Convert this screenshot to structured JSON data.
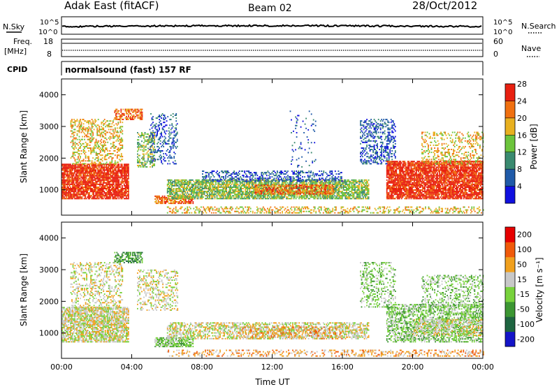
{
  "header": {
    "station": "Adak East (fitACF)",
    "beam": "Beam 02",
    "date": "28/Oct/2012"
  },
  "noise_panel": {
    "left_label": "N.Sky",
    "left_ticks": [
      "10^5",
      "10^0"
    ],
    "right_label": "N.Search",
    "right_ticks": [
      "10^5",
      "10^0"
    ],
    "line_color": "#000000"
  },
  "freq_panel": {
    "left_label_1": "Freq.",
    "left_label_2": "[MHz]",
    "left_ticks": [
      "18",
      "8"
    ],
    "right_label": "Nave",
    "right_ticks": [
      "60",
      "0"
    ]
  },
  "cpid_panel": {
    "label": "CPID",
    "text": "normalsound (fast) 157 RF"
  },
  "chart_data": [
    {
      "type": "heatmap",
      "name": "power",
      "ylabel": "Slant Range [km]",
      "ylim": [
        200,
        4500
      ],
      "yticks": [
        "1000",
        "2000",
        "3000",
        "4000"
      ],
      "xlim": [
        0,
        24
      ],
      "xticks": [
        "00:00",
        "04:00",
        "08:00",
        "12:00",
        "16:00",
        "20:00",
        "00:00"
      ],
      "colorbar": {
        "label": "Power [dB]",
        "ticks": [
          "4",
          "8",
          "12",
          "16",
          "20",
          "24",
          "28"
        ],
        "colors": [
          "#1010e0",
          "#205aa8",
          "#3a8a70",
          "#6cc43c",
          "#e8b020",
          "#f07010",
          "#e82010"
        ]
      },
      "regions": [
        {
          "x": [
            0.0,
            3.8
          ],
          "y": [
            700,
            1800
          ],
          "level": 6,
          "density": 0.85
        },
        {
          "x": [
            0.5,
            3.5
          ],
          "y": [
            1800,
            3200
          ],
          "level": 4,
          "density": 0.35
        },
        {
          "x": [
            3.0,
            4.6
          ],
          "y": [
            3200,
            3550
          ],
          "level": 5,
          "density": 0.6
        },
        {
          "x": [
            4.3,
            5.3
          ],
          "y": [
            1700,
            2800
          ],
          "level": 3,
          "density": 0.45
        },
        {
          "x": [
            5.0,
            6.6
          ],
          "y": [
            1800,
            3400
          ],
          "level": 1,
          "density": 0.25
        },
        {
          "x": [
            5.3,
            7.5
          ],
          "y": [
            550,
            800
          ],
          "level": 5,
          "density": 0.7
        },
        {
          "x": [
            6.0,
            17.5
          ],
          "y": [
            700,
            1300
          ],
          "level": 3,
          "density": 0.75
        },
        {
          "x": [
            11.0,
            15.5
          ],
          "y": [
            850,
            1150
          ],
          "level": 5,
          "density": 0.6
        },
        {
          "x": [
            8.0,
            16.0
          ],
          "y": [
            1250,
            1600
          ],
          "level": 1,
          "density": 0.4
        },
        {
          "x": [
            13.0,
            14.5
          ],
          "y": [
            1700,
            3500
          ],
          "level": 1,
          "density": 0.08
        },
        {
          "x": [
            17.0,
            19.0
          ],
          "y": [
            1800,
            3200
          ],
          "level": 1,
          "density": 0.35
        },
        {
          "x": [
            18.5,
            24.0
          ],
          "y": [
            700,
            1900
          ],
          "level": 6,
          "density": 0.85
        },
        {
          "x": [
            20.5,
            24.0
          ],
          "y": [
            1800,
            2800
          ],
          "level": 4,
          "density": 0.3
        },
        {
          "x": [
            6.0,
            24.0
          ],
          "y": [
            250,
            450
          ],
          "level": 4,
          "density": 0.35
        }
      ]
    },
    {
      "type": "heatmap",
      "name": "velocity",
      "ylabel": "Slant Range [km]",
      "ylim": [
        200,
        4500
      ],
      "yticks": [
        "1000",
        "2000",
        "3000",
        "4000"
      ],
      "xlim": [
        0,
        24
      ],
      "xlabel": "Time UT",
      "xticks": [
        "00:00",
        "04:00",
        "08:00",
        "12:00",
        "16:00",
        "20:00",
        "00:00"
      ],
      "colorbar": {
        "label": "Velocity [m s⁻¹]",
        "ticks": [
          "200",
          "100",
          "50",
          "15",
          "-15",
          "-50",
          "-100",
          "-200"
        ],
        "colors": [
          "#1414c8",
          "#1e6440",
          "#3c9632",
          "#78d23c",
          "#c8c8c8",
          "#f0a01e",
          "#f05a0a",
          "#e60000"
        ]
      },
      "regions": [
        {
          "x": [
            0.0,
            3.8
          ],
          "y": [
            700,
            1800
          ],
          "level": 4,
          "density": 0.75
        },
        {
          "x": [
            0.5,
            3.5
          ],
          "y": [
            1800,
            3200
          ],
          "level": 4,
          "density": 0.3
        },
        {
          "x": [
            3.0,
            4.6
          ],
          "y": [
            3200,
            3550
          ],
          "level": 2,
          "density": 0.5
        },
        {
          "x": [
            4.3,
            6.6
          ],
          "y": [
            1700,
            3000
          ],
          "level": 4,
          "density": 0.3
        },
        {
          "x": [
            5.3,
            7.5
          ],
          "y": [
            550,
            850
          ],
          "level": 3,
          "density": 0.75
        },
        {
          "x": [
            6.0,
            17.5
          ],
          "y": [
            800,
            1300
          ],
          "level": 4,
          "density": 0.55
        },
        {
          "x": [
            10.0,
            16.0
          ],
          "y": [
            800,
            1200
          ],
          "level": 5,
          "density": 0.25
        },
        {
          "x": [
            17.0,
            19.0
          ],
          "y": [
            1800,
            3200
          ],
          "level": 3,
          "density": 0.3
        },
        {
          "x": [
            18.5,
            24.0
          ],
          "y": [
            700,
            1900
          ],
          "level": 3,
          "density": 0.55
        },
        {
          "x": [
            20.0,
            24.0
          ],
          "y": [
            900,
            1400
          ],
          "level": 4,
          "density": 0.5
        },
        {
          "x": [
            20.5,
            24.0
          ],
          "y": [
            1800,
            2800
          ],
          "level": 3,
          "density": 0.3
        },
        {
          "x": [
            6.0,
            24.0
          ],
          "y": [
            250,
            450
          ],
          "level": 5,
          "density": 0.3
        }
      ]
    }
  ]
}
